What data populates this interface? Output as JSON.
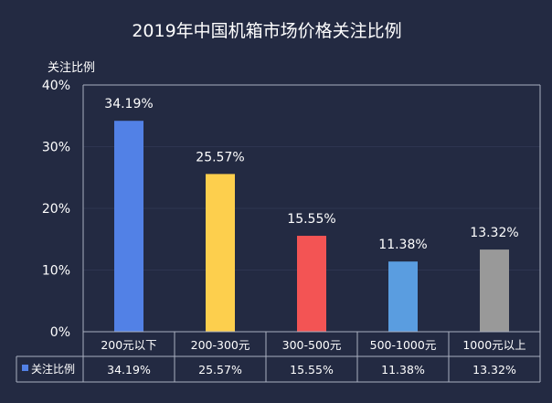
{
  "chart_data": {
    "type": "bar",
    "title": "2019年中国机箱市场价格关注比例",
    "ylabel": "关注比例",
    "xlabel": "",
    "ylim": [
      0,
      40
    ],
    "yticks": [
      0,
      10,
      20,
      30,
      40
    ],
    "ytick_labels": [
      "0%",
      "10%",
      "20%",
      "30%",
      "40%"
    ],
    "grid": true,
    "legend": "data-table-left",
    "categories": [
      "200元以下",
      "200-300元",
      "300-500元",
      "500-1000元",
      "1000元以上"
    ],
    "series": [
      {
        "name": "关注比例",
        "values": [
          34.19,
          25.57,
          15.55,
          11.38,
          13.32
        ],
        "labels": [
          "34.19%",
          "25.57%",
          "15.55%",
          "11.38%",
          "13.32%"
        ],
        "colors": [
          "#5281e6",
          "#fdcf4d",
          "#f35454",
          "#5a9de0",
          "#999999"
        ]
      }
    ]
  },
  "colors": {
    "background": "#232a42",
    "axis": "#aab0c0",
    "grid": "#2e3550",
    "legend_marker": "#5281e6"
  }
}
